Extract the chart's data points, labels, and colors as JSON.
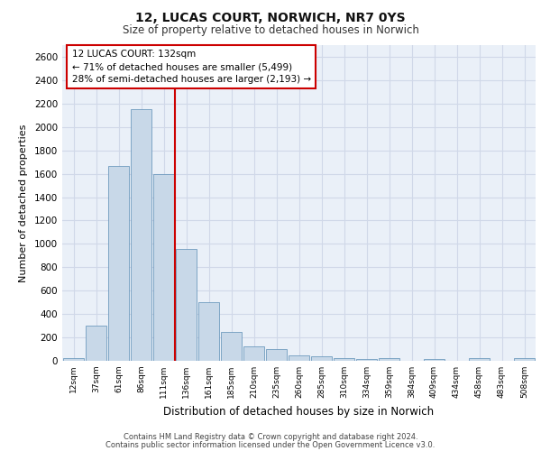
{
  "title1": "12, LUCAS COURT, NORWICH, NR7 0YS",
  "title2": "Size of property relative to detached houses in Norwich",
  "xlabel": "Distribution of detached houses by size in Norwich",
  "ylabel": "Number of detached properties",
  "bar_color": "#c8d8e8",
  "bar_edge_color": "#5b8db5",
  "categories": [
    "12sqm",
    "37sqm",
    "61sqm",
    "86sqm",
    "111sqm",
    "136sqm",
    "161sqm",
    "185sqm",
    "210sqm",
    "235sqm",
    "260sqm",
    "285sqm",
    "310sqm",
    "334sqm",
    "359sqm",
    "384sqm",
    "409sqm",
    "434sqm",
    "458sqm",
    "483sqm",
    "508sqm"
  ],
  "values": [
    25,
    300,
    1670,
    2150,
    1600,
    960,
    500,
    250,
    125,
    100,
    45,
    38,
    20,
    15,
    20,
    0,
    15,
    0,
    20,
    0,
    25
  ],
  "vline_color": "#cc0000",
  "annotation_text": "12 LUCAS COURT: 132sqm\n← 71% of detached houses are smaller (5,499)\n28% of semi-detached houses are larger (2,193) →",
  "annotation_box_color": "#cc0000",
  "footer1": "Contains HM Land Registry data © Crown copyright and database right 2024.",
  "footer2": "Contains public sector information licensed under the Open Government Licence v3.0.",
  "ylim": [
    0,
    2700
  ],
  "yticks": [
    0,
    200,
    400,
    600,
    800,
    1000,
    1200,
    1400,
    1600,
    1800,
    2000,
    2200,
    2400,
    2600
  ],
  "grid_color": "#d0d8e8",
  "background_color": "#eaf0f8"
}
